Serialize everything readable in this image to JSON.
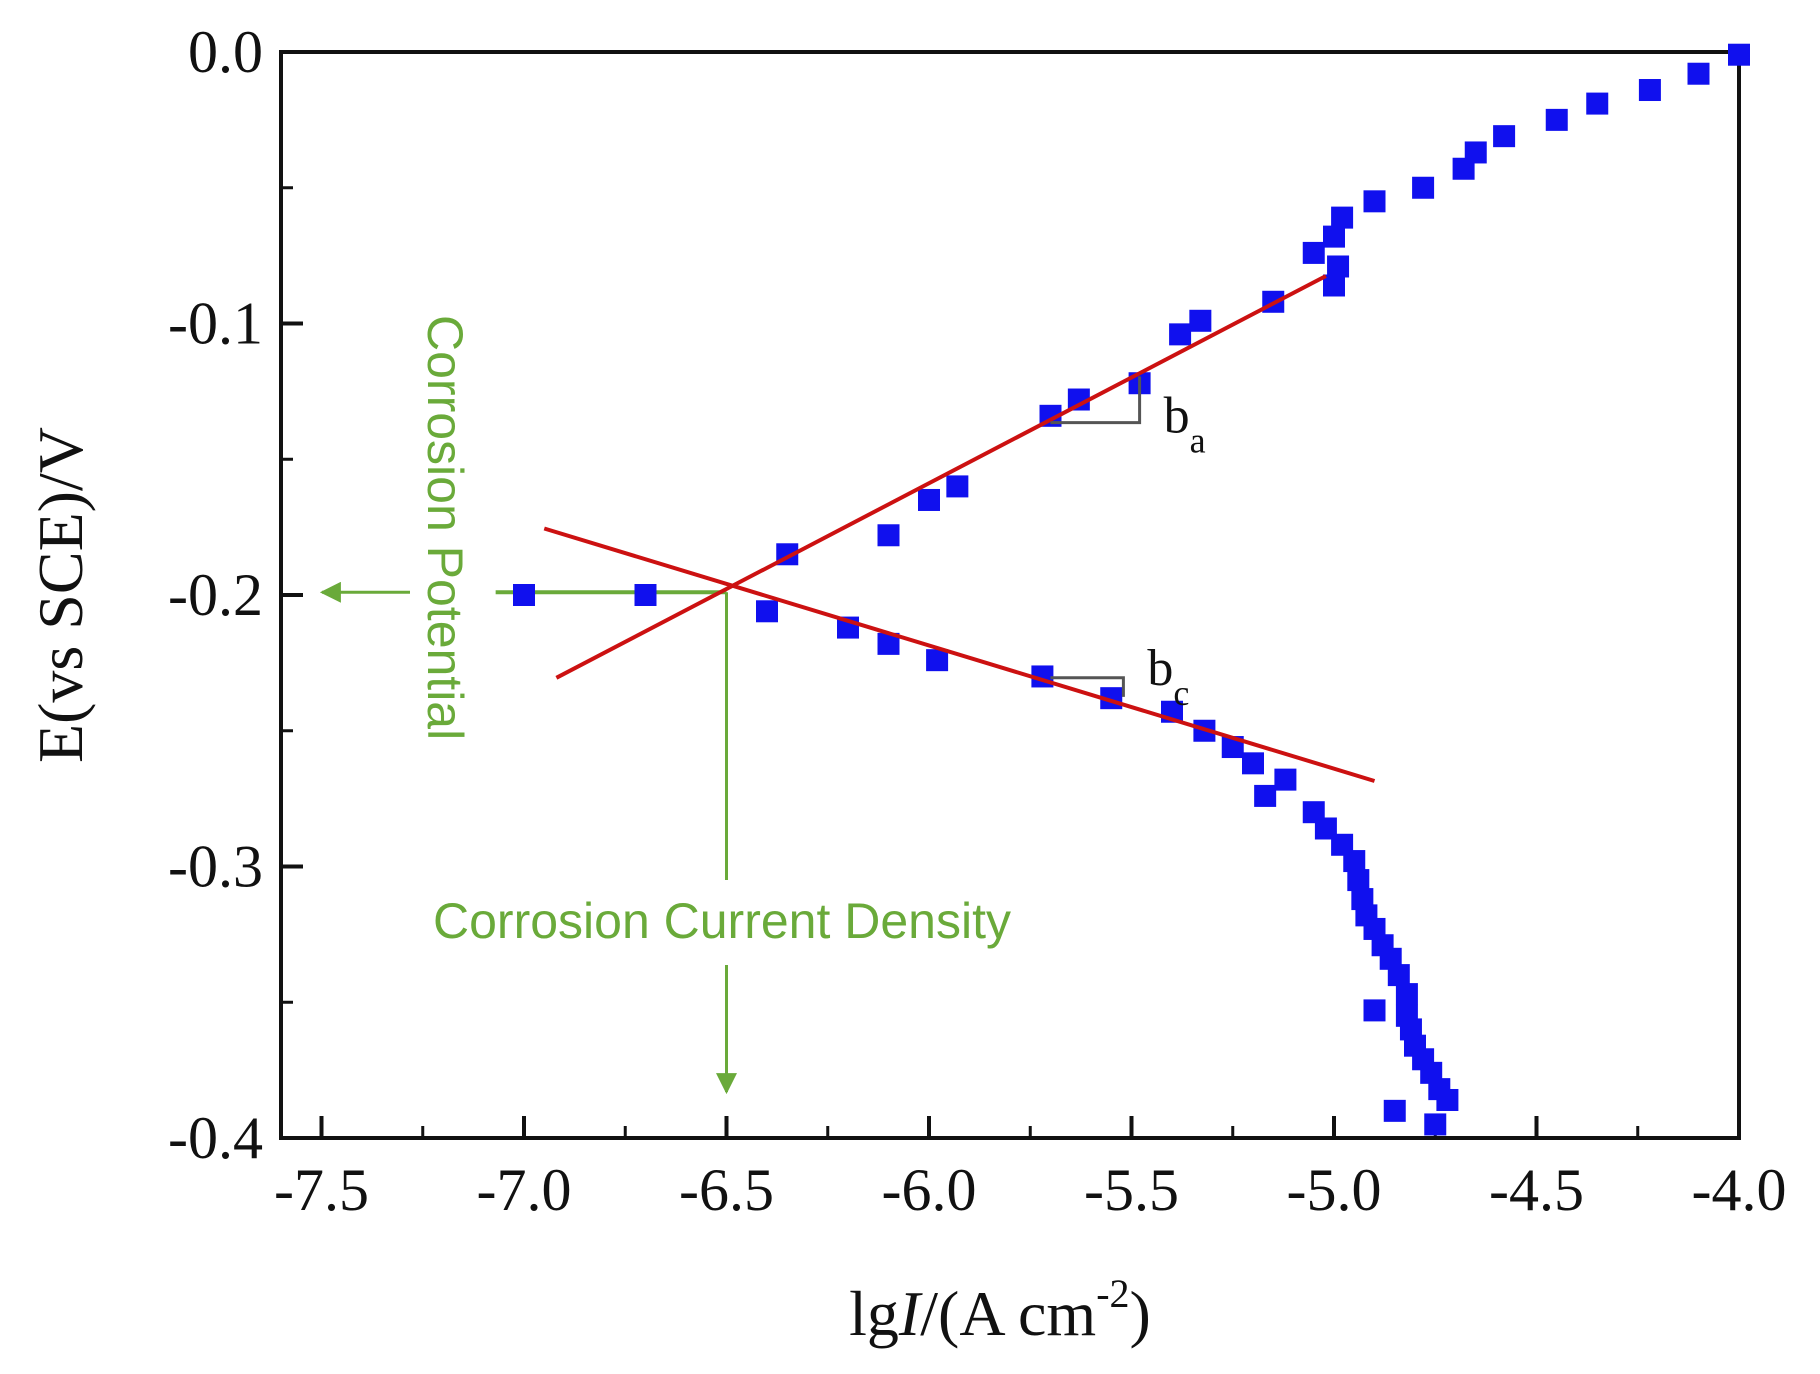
{
  "chart_data": {
    "type": "scatter",
    "title": "",
    "xlabel": {
      "prefix": "lg",
      "italic": "I",
      "suffix": "/(A cm",
      "sup": "-2",
      "close": ")"
    },
    "ylabel": "E(vs SCE)/V",
    "xlim": [
      -7.6,
      -4.0
    ],
    "ylim": [
      -0.4,
      0.0
    ],
    "x_ticks": [
      -7.5,
      -7.0,
      -6.5,
      -6.0,
      -5.5,
      -5.0,
      -4.5,
      -4.0
    ],
    "x_tick_labels": [
      "-7.5",
      "-7.0",
      "-6.5",
      "-6.0",
      "-5.5",
      "-5.0",
      "-4.5",
      "-4.0"
    ],
    "y_ticks": [
      0.0,
      -0.1,
      -0.2,
      -0.3,
      -0.4
    ],
    "y_tick_labels": [
      "0.0",
      "-0.1",
      "-0.2",
      "-0.3",
      "-0.4"
    ],
    "grid": false,
    "colors": {
      "points": "#1010ee",
      "fit": "#cc1111",
      "annotation": "#6aaa3a",
      "axis": "#111111",
      "bracket": "#555555"
    },
    "series": [
      {
        "name": "polarization data",
        "points": [
          [
            -7.0,
            -0.2
          ],
          [
            -6.7,
            -0.2
          ],
          [
            -6.4,
            -0.206
          ],
          [
            -6.35,
            -0.185
          ],
          [
            -6.2,
            -0.212
          ],
          [
            -6.1,
            -0.178
          ],
          [
            -6.1,
            -0.218
          ],
          [
            -6.0,
            -0.165
          ],
          [
            -5.93,
            -0.16
          ],
          [
            -5.98,
            -0.224
          ],
          [
            -5.72,
            -0.23
          ],
          [
            -5.7,
            -0.134
          ],
          [
            -5.63,
            -0.128
          ],
          [
            -5.55,
            -0.238
          ],
          [
            -5.48,
            -0.122
          ],
          [
            -5.4,
            -0.243
          ],
          [
            -5.38,
            -0.104
          ],
          [
            -5.33,
            -0.099
          ],
          [
            -5.32,
            -0.25
          ],
          [
            -5.25,
            -0.256
          ],
          [
            -5.2,
            -0.262
          ],
          [
            -5.17,
            -0.274
          ],
          [
            -5.15,
            -0.092
          ],
          [
            -5.12,
            -0.268
          ],
          [
            -5.05,
            -0.074
          ],
          [
            -5.0,
            -0.086
          ],
          [
            -5.0,
            -0.068
          ],
          [
            -4.99,
            -0.079
          ],
          [
            -4.98,
            -0.061
          ],
          [
            -5.05,
            -0.28
          ],
          [
            -5.02,
            -0.286
          ],
          [
            -4.98,
            -0.292
          ],
          [
            -4.95,
            -0.298
          ],
          [
            -4.94,
            -0.305
          ],
          [
            -4.93,
            -0.312
          ],
          [
            -4.92,
            -0.318
          ],
          [
            -4.9,
            -0.323
          ],
          [
            -4.88,
            -0.329
          ],
          [
            -4.86,
            -0.334
          ],
          [
            -4.84,
            -0.34
          ],
          [
            -4.82,
            -0.347
          ],
          [
            -4.82,
            -0.355
          ],
          [
            -4.9,
            -0.353
          ],
          [
            -4.81,
            -0.36
          ],
          [
            -4.8,
            -0.366
          ],
          [
            -4.78,
            -0.371
          ],
          [
            -4.76,
            -0.376
          ],
          [
            -4.74,
            -0.382
          ],
          [
            -4.72,
            -0.386
          ],
          [
            -4.85,
            -0.39
          ],
          [
            -4.75,
            -0.395
          ],
          [
            -4.9,
            -0.055
          ],
          [
            -4.78,
            -0.05
          ],
          [
            -4.68,
            -0.043
          ],
          [
            -4.65,
            -0.037
          ],
          [
            -4.58,
            -0.031
          ],
          [
            -4.45,
            -0.025
          ],
          [
            -4.35,
            -0.019
          ],
          [
            -4.22,
            -0.014
          ],
          [
            -4.1,
            -0.008
          ],
          [
            -4.0,
            -0.001
          ]
        ]
      }
    ],
    "fit_lines": [
      {
        "name": "anodic Tafel line",
        "x": [
          -6.92,
          -5.02
        ],
        "y": [
          -0.2305,
          -0.0825
        ]
      },
      {
        "name": "cathodic Tafel line",
        "x": [
          -6.95,
          -4.9
        ],
        "y": [
          -0.1755,
          -0.2685
        ]
      }
    ],
    "intersection": {
      "x": -6.5,
      "y": -0.199
    },
    "tafel_brackets": [
      {
        "label": "b",
        "sub": "a",
        "x": [
          -5.7,
          -5.48
        ],
        "y": [
          -0.1365,
          -0.1195
        ]
      },
      {
        "label": "b",
        "sub": "c",
        "x": [
          -5.7,
          -5.52
        ],
        "y": [
          -0.2305,
          -0.2375
        ]
      }
    ],
    "annotations": {
      "corrosion_potential": "Corrosion Potential",
      "corrosion_current_density": "Corrosion Current Density"
    }
  }
}
